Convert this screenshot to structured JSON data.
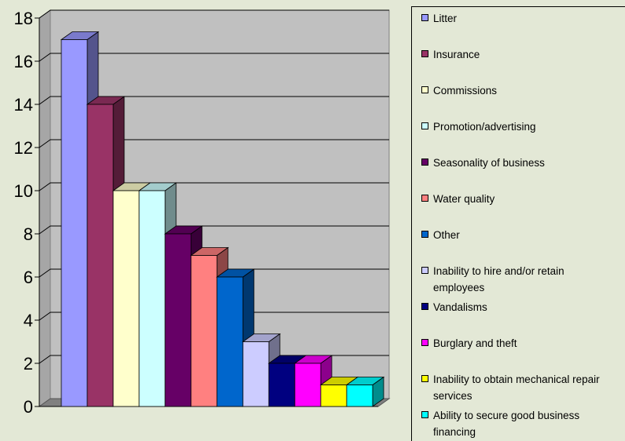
{
  "chart_data": {
    "type": "bar",
    "style": "3d-clustered-column",
    "categories": [
      "Litter",
      "Insurance",
      "Commissions",
      "Promotion/advertising",
      "Seasonality of business",
      "Water quality",
      "Other",
      "Inability to hire and/or retain employees",
      "Vandalisms",
      "Burglary and theft",
      "Inability to obtain mechanical repair services",
      "Ability to secure good business financing"
    ],
    "values": [
      17,
      14,
      10,
      10,
      8,
      7,
      6,
      3,
      2,
      2,
      1,
      1
    ],
    "colors": [
      "#9999ff",
      "#993366",
      "#ffffcc",
      "#ccffff",
      "#660066",
      "#ff8080",
      "#0066cc",
      "#ccccff",
      "#000080",
      "#ff00ff",
      "#ffff00",
      "#00ffff"
    ],
    "y_ticks": [
      "0",
      "2",
      "4",
      "6",
      "8",
      "10",
      "12",
      "14",
      "16",
      "18"
    ],
    "ylim": [
      0,
      18
    ],
    "grid": true,
    "legend_position": "right",
    "title": "",
    "xlabel": "",
    "ylabel": ""
  }
}
